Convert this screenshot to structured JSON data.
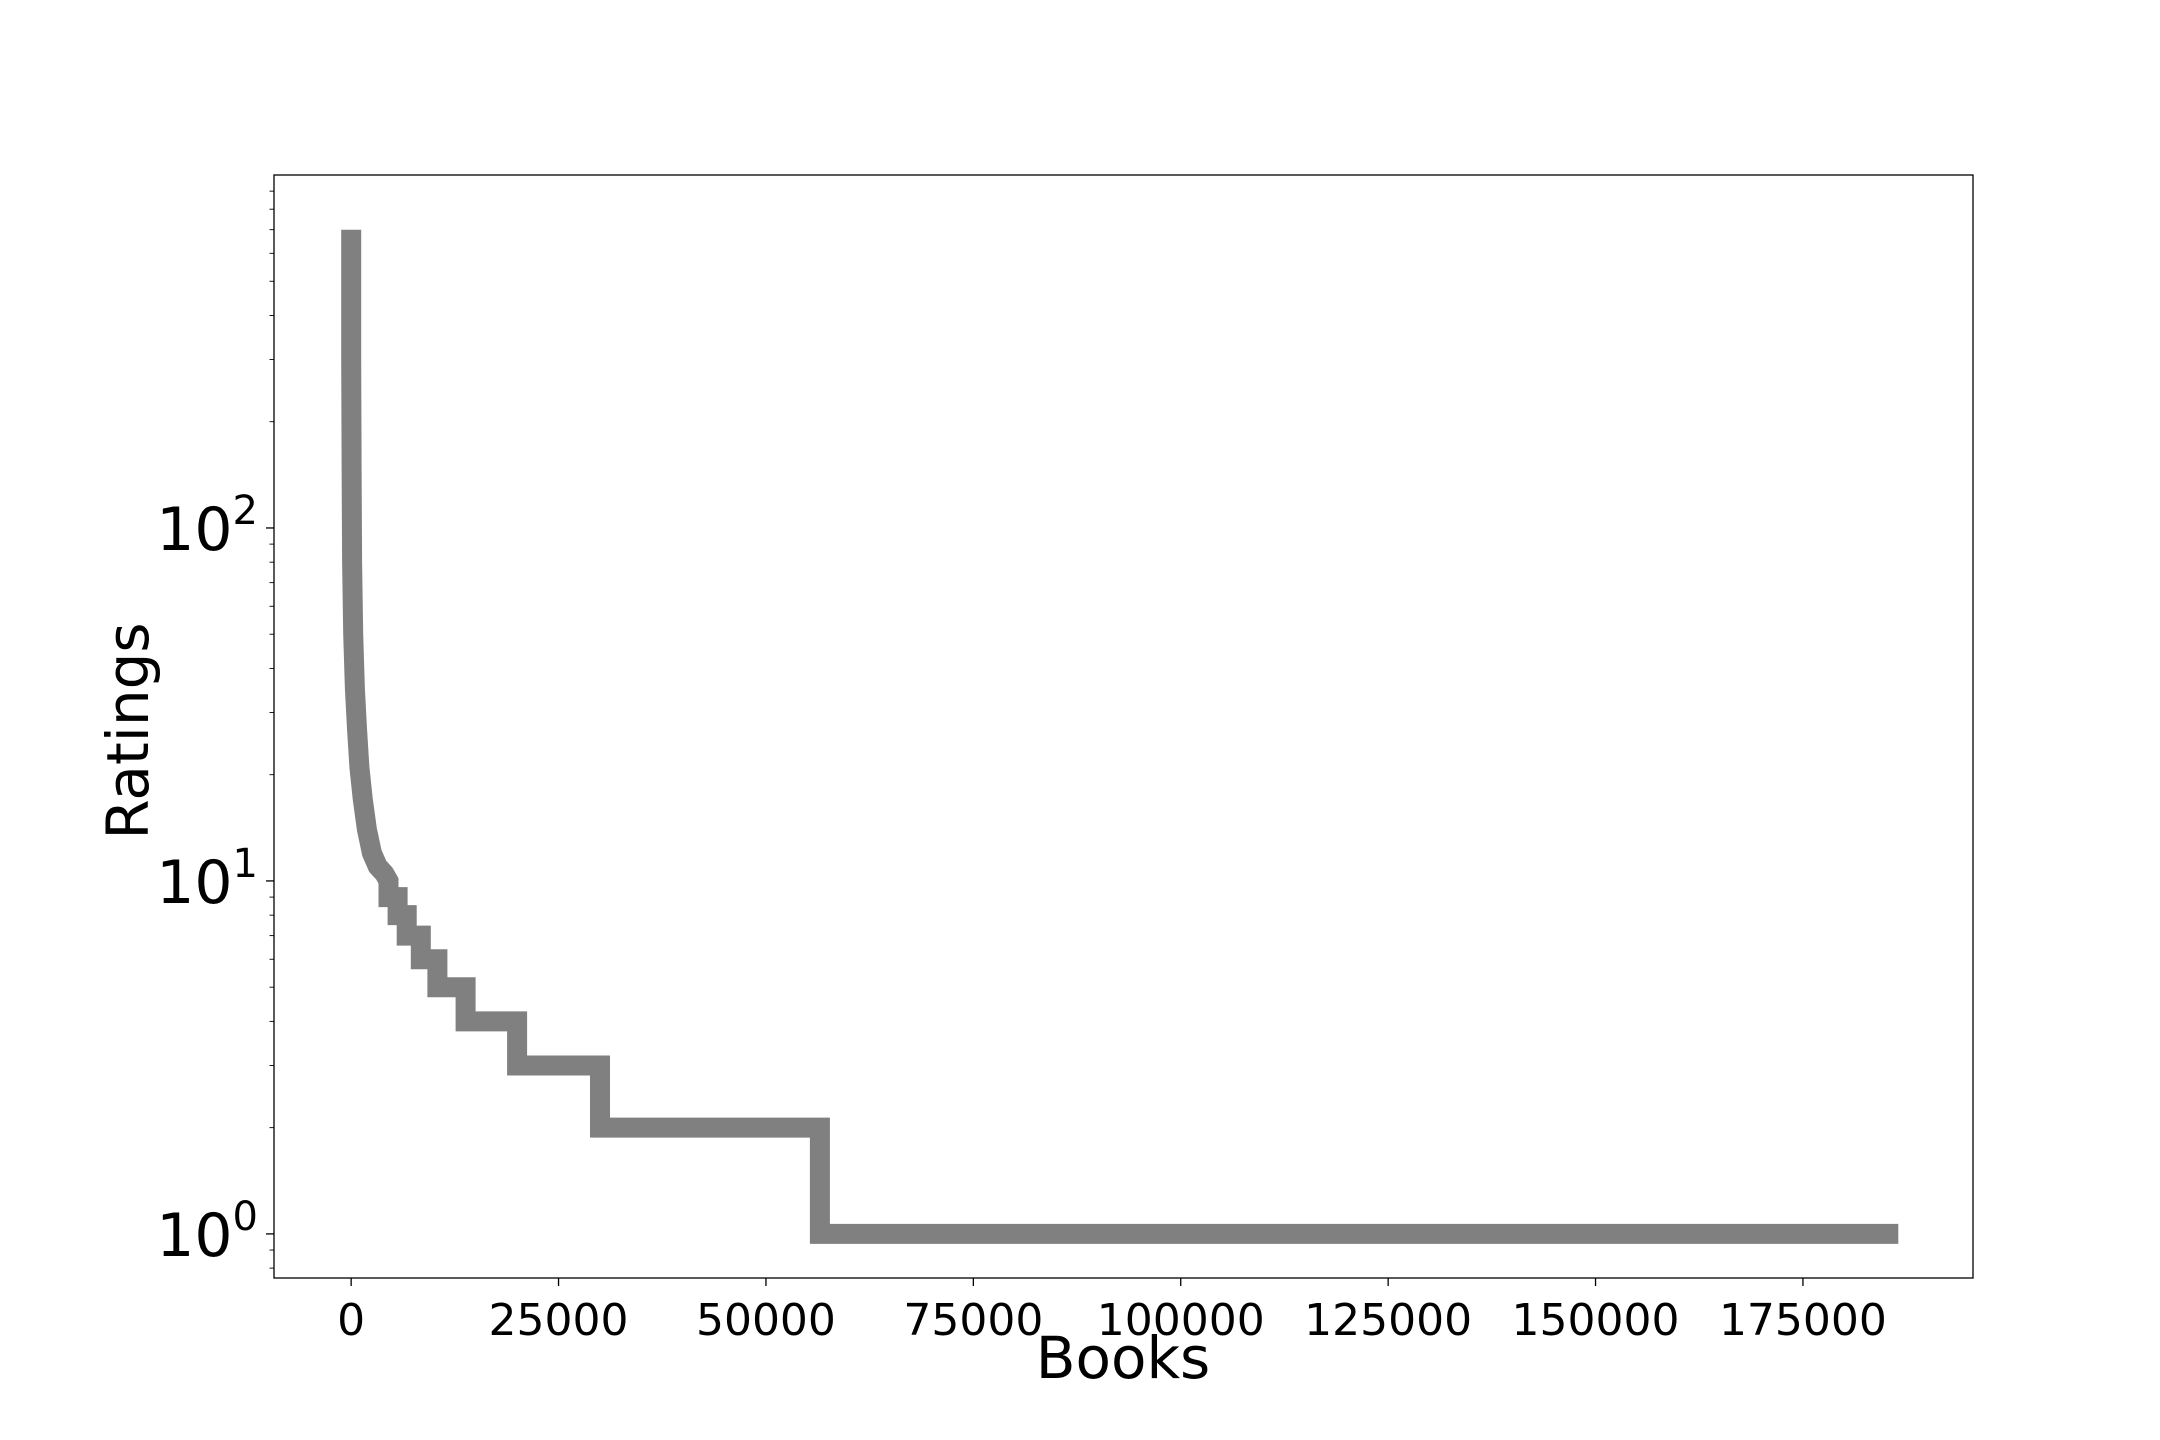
{
  "chart_data": {
    "type": "line",
    "title": "",
    "xlabel": "Books",
    "ylabel": "Ratings",
    "xscale": "linear",
    "yscale": "log",
    "xlim": [
      -9300,
      195500
    ],
    "ylim": [
      0.75,
      1000
    ],
    "grid": false,
    "legend": "none",
    "line_color": "#808080",
    "xticks": [
      0,
      25000,
      50000,
      75000,
      100000,
      125000,
      150000,
      175000
    ],
    "xtick_labels": [
      "0",
      "25000",
      "50000",
      "75000",
      "100000",
      "125000",
      "150000",
      "175000"
    ],
    "yticks": [
      {
        "value": 1,
        "base": "10",
        "exponent": "0"
      },
      {
        "value": 10,
        "base": "10",
        "exponent": "1"
      },
      {
        "value": 100,
        "base": "10",
        "exponent": "2"
      }
    ],
    "series": [
      {
        "x": [
          0,
          0,
          50,
          120,
          250,
          450,
          700,
          1000,
          1400,
          1900,
          2500,
          3200,
          4000,
          4500,
          4500,
          5600,
          5600,
          6700,
          6700,
          8400,
          8400,
          10400,
          10400,
          13800,
          13800,
          20000,
          20000,
          30000,
          30000,
          56500,
          56500,
          186500
        ],
        "y": [
          700,
          300,
          150,
          80,
          50,
          35,
          27,
          21,
          17,
          14,
          12,
          11,
          10.5,
          10,
          9,
          9,
          8,
          8,
          7,
          7,
          6,
          6,
          5,
          5,
          4,
          4,
          3,
          3,
          2,
          2,
          1,
          1
        ]
      }
    ]
  }
}
